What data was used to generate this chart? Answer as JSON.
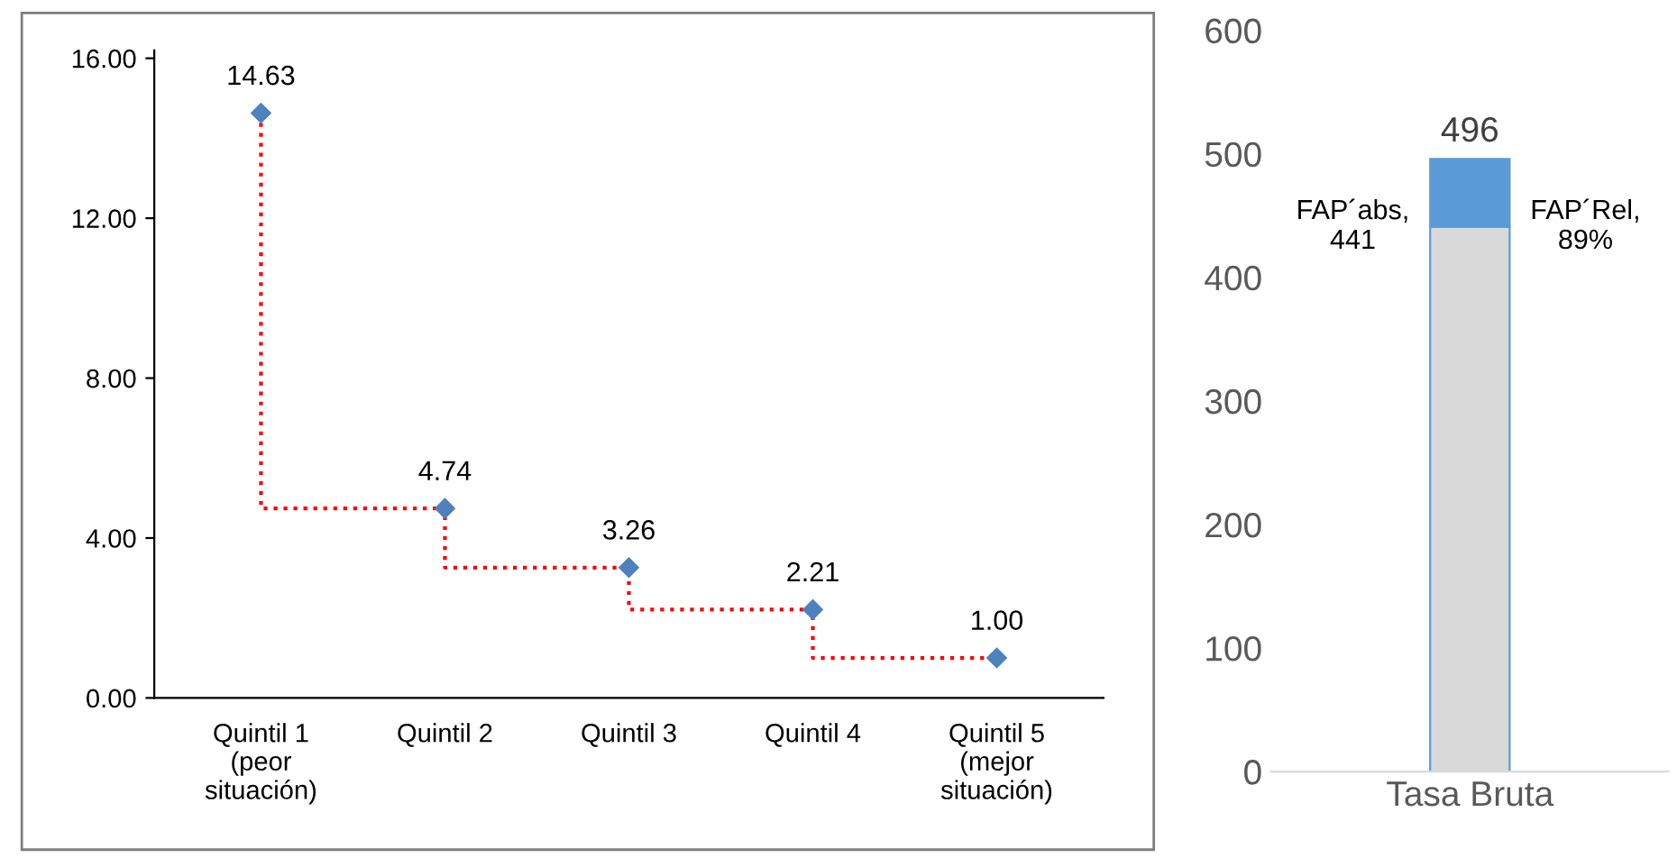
{
  "chart_data": [
    {
      "type": "step",
      "categories": [
        "Quintil 1\n(peor\nsituación)",
        "Quintil 2",
        "Quintil 3",
        "Quintil 4",
        "Quintil 5\n(mejor\nsituación)"
      ],
      "series": [
        {
          "type": "step",
          "color": "#ff0000",
          "marker": "none",
          "values": [
            14.63,
            4.74,
            3.26,
            2.21,
            1.0
          ]
        },
        {
          "type": "scatter",
          "color": "#4f81bd",
          "marker": "diamond",
          "values": [
            14.63,
            4.74,
            3.26,
            2.21,
            1.0
          ],
          "value_labels": [
            "14.63",
            "4.74",
            "3.26",
            "2.21",
            "1.00"
          ]
        }
      ],
      "line_style": "dotted",
      "ylim": [
        0,
        16.2
      ],
      "yticks": [
        {
          "value": 0,
          "label": "0.00"
        },
        {
          "value": 4,
          "label": "4.00"
        },
        {
          "value": 8,
          "label": "8.00"
        },
        {
          "value": 12,
          "label": "12.00"
        },
        {
          "value": 16,
          "label": "16.00"
        }
      ],
      "grid": false,
      "legend": false
    },
    {
      "type": "bar",
      "stacked": true,
      "categories": [
        "Tasa Bruta"
      ],
      "series": [
        {
          "color": "#d9d9d9",
          "values": [
            441
          ]
        },
        {
          "color": "#5b9bd5",
          "values": [
            55
          ]
        }
      ],
      "totals": [
        "496"
      ],
      "ylim": [
        0,
        600
      ],
      "yticks": [
        0,
        100,
        200,
        300,
        400,
        500,
        600
      ],
      "grid": false,
      "legend": false,
      "annotations": [
        "FAP´abs,\n441",
        "FAP´Rel,\n89%"
      ]
    }
  ]
}
